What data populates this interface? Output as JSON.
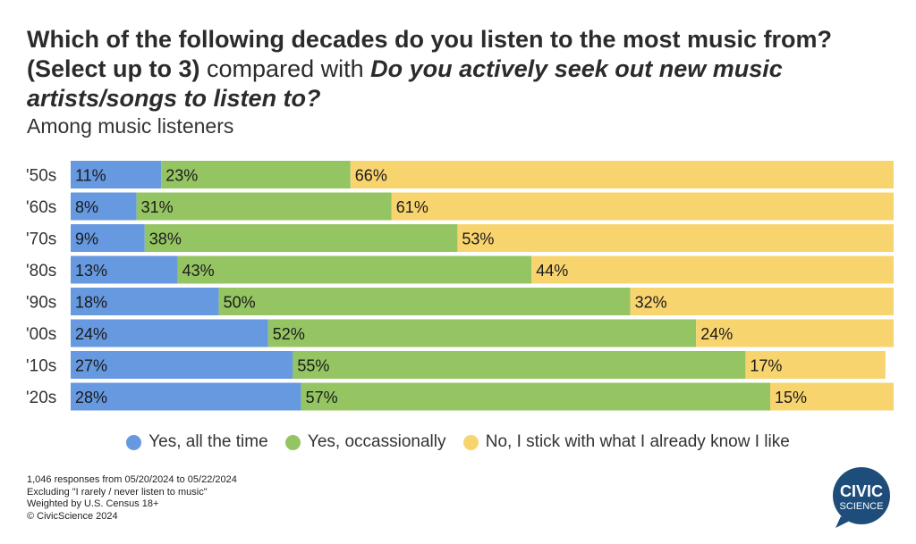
{
  "title": {
    "part1": "Which of the following decades do you listen to the most music from?",
    "part2": "(Select up to 3)",
    "part3": " compared with ",
    "part4": "Do you actively seek out new music artists/songs to listen to?"
  },
  "subtitle": "Among music listeners",
  "colors": {
    "yes_all": "#6699e0",
    "yes_occ": "#95c462",
    "no": "#f8d46f"
  },
  "chart_data": {
    "type": "bar",
    "orientation": "horizontal",
    "stacked": true,
    "categories": [
      "'50s",
      "'60s",
      "'70s",
      "'80s",
      "'90s",
      "'00s",
      "'10s",
      "'20s"
    ],
    "series": [
      {
        "name": "Yes, all the time",
        "values": [
          11,
          8,
          9,
          13,
          18,
          24,
          27,
          28
        ]
      },
      {
        "name": "Yes, occassionally",
        "values": [
          23,
          31,
          38,
          43,
          50,
          52,
          55,
          57
        ]
      },
      {
        "name": "No, I stick with what I already know I like",
        "values": [
          66,
          61,
          53,
          44,
          32,
          24,
          17,
          15
        ]
      }
    ],
    "value_suffix": "%",
    "xlim": [
      0,
      100
    ],
    "legend_position": "bottom",
    "grid": false
  },
  "legend": [
    {
      "label": "Yes, all the time",
      "color": "#6699e0"
    },
    {
      "label": "Yes, occassionally",
      "color": "#95c462"
    },
    {
      "label": "No, I stick with what I already know I like",
      "color": "#f8d46f"
    }
  ],
  "notes": [
    "1,046 responses from 05/20/2024 to 05/22/2024",
    "Excluding \"I rarely / never listen to music\"",
    "Weighted by U.S. Census 18+",
    "© CivicScience 2024"
  ],
  "logo": {
    "line1": "CIVIC",
    "line2": "SCIENCE",
    "color": "#1e4d7b"
  }
}
